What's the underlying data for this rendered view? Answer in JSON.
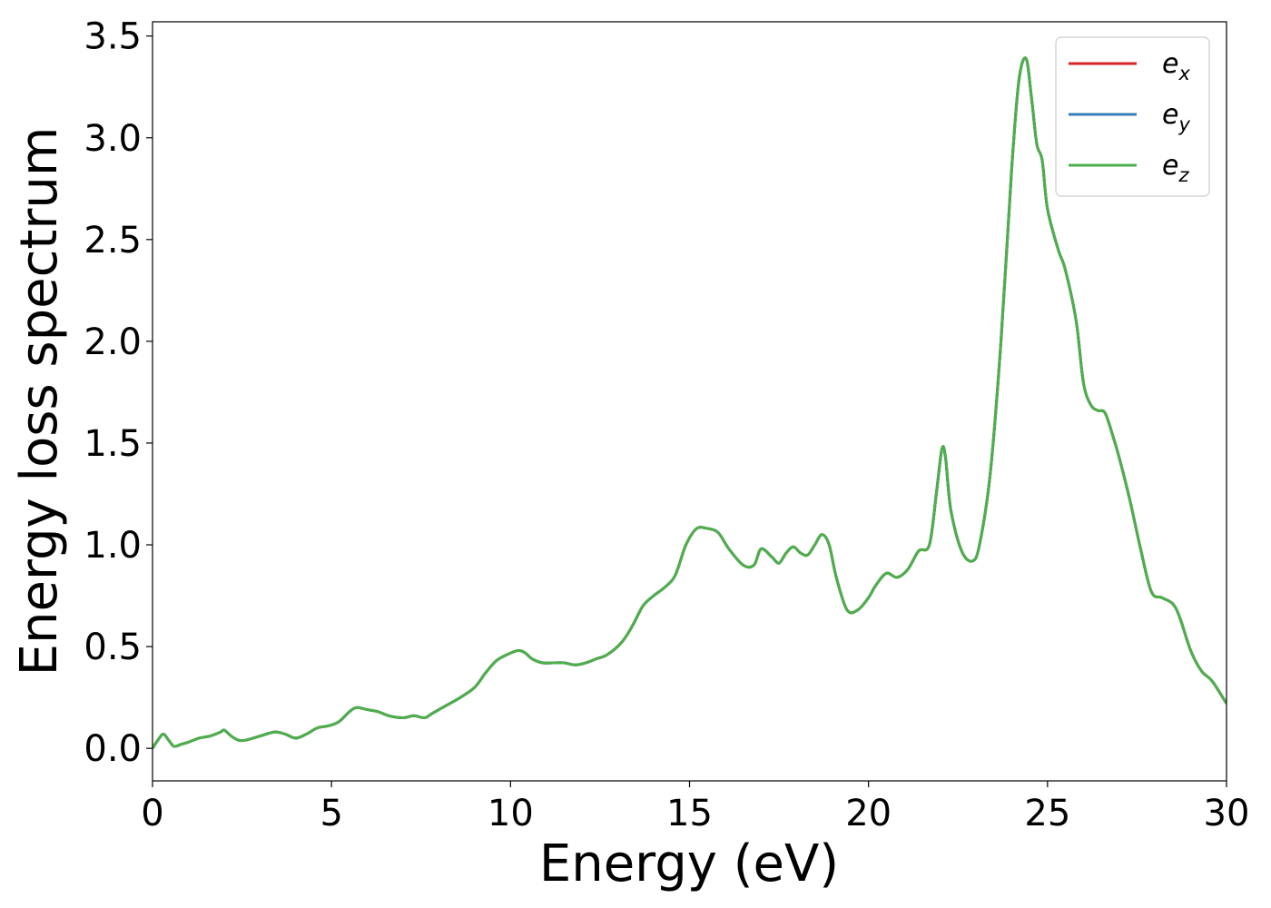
{
  "chart_data": {
    "type": "line",
    "title": "",
    "xlabel": "Energy (eV)",
    "ylabel": "Energy loss spectrum",
    "xlim": [
      0,
      30
    ],
    "ylim": [
      -0.16,
      3.57
    ],
    "xticks": [
      0,
      5,
      10,
      15,
      20,
      25,
      30
    ],
    "xtick_labels": [
      "0",
      "5",
      "10",
      "15",
      "20",
      "25",
      "30"
    ],
    "yticks": [
      0.0,
      0.5,
      1.0,
      1.5,
      2.0,
      2.5,
      3.0,
      3.5
    ],
    "ytick_labels": [
      "0.0",
      "0.5",
      "1.0",
      "1.5",
      "2.0",
      "2.5",
      "3.0",
      "3.5"
    ],
    "grid": false,
    "legend_position": "top-right",
    "series": [
      {
        "legend_base": "e",
        "legend_sub": "x",
        "color": "#d62728",
        "x": [
          0,
          0.15,
          0.3,
          0.45,
          0.6,
          0.8,
          1.0,
          1.3,
          1.6,
          1.9,
          2.0,
          2.2,
          2.4,
          2.6,
          3.0,
          3.4,
          3.7,
          4.0,
          4.3,
          4.6,
          4.9,
          5.2,
          5.5,
          5.7,
          6.0,
          6.3,
          6.6,
          7.0,
          7.3,
          7.6,
          7.8,
          8.2,
          8.6,
          9.0,
          9.3,
          9.6,
          9.9,
          10.2,
          10.4,
          10.6,
          10.9,
          11.2,
          11.5,
          11.8,
          12.1,
          12.4,
          12.7,
          13.1,
          13.4,
          13.7,
          14.0,
          14.3,
          14.6,
          14.9,
          15.2,
          15.5,
          15.8,
          16.1,
          16.5,
          16.8,
          17.0,
          17.3,
          17.5,
          17.7,
          17.9,
          18.1,
          18.3,
          18.5,
          18.7,
          18.9,
          19.1,
          19.4,
          19.7,
          20.0,
          20.2,
          20.5,
          20.8,
          21.1,
          21.4,
          21.7,
          21.9,
          22.05,
          22.15,
          22.3,
          22.6,
          22.9,
          23.1,
          23.4,
          23.7,
          24.0,
          24.2,
          24.4,
          24.55,
          24.7,
          24.85,
          25.0,
          25.3,
          25.5,
          25.8,
          26.0,
          26.2,
          26.4,
          26.6,
          26.8,
          27.0,
          27.3,
          27.6,
          27.9,
          28.2,
          28.5,
          28.7,
          29.0,
          29.3,
          29.6,
          30.0
        ],
        "y": [
          0.0,
          0.04,
          0.07,
          0.04,
          0.01,
          0.02,
          0.03,
          0.05,
          0.06,
          0.08,
          0.09,
          0.06,
          0.04,
          0.04,
          0.06,
          0.08,
          0.07,
          0.05,
          0.07,
          0.1,
          0.11,
          0.13,
          0.18,
          0.2,
          0.19,
          0.18,
          0.16,
          0.15,
          0.16,
          0.15,
          0.17,
          0.21,
          0.25,
          0.3,
          0.37,
          0.43,
          0.46,
          0.48,
          0.47,
          0.44,
          0.42,
          0.42,
          0.42,
          0.41,
          0.42,
          0.44,
          0.46,
          0.52,
          0.6,
          0.7,
          0.75,
          0.79,
          0.85,
          1.0,
          1.08,
          1.08,
          1.06,
          0.98,
          0.9,
          0.9,
          0.98,
          0.94,
          0.91,
          0.96,
          0.99,
          0.96,
          0.95,
          1.0,
          1.05,
          1.0,
          0.84,
          0.68,
          0.68,
          0.74,
          0.8,
          0.86,
          0.84,
          0.88,
          0.97,
          1.0,
          1.26,
          1.47,
          1.43,
          1.17,
          0.97,
          0.92,
          1.0,
          1.35,
          2.0,
          2.85,
          3.28,
          3.39,
          3.2,
          2.97,
          2.89,
          2.65,
          2.45,
          2.35,
          2.1,
          1.8,
          1.69,
          1.66,
          1.65,
          1.55,
          1.43,
          1.22,
          0.98,
          0.77,
          0.74,
          0.71,
          0.64,
          0.48,
          0.38,
          0.33,
          0.22
        ]
      },
      {
        "legend_base": "e",
        "legend_sub": "y",
        "color": "#377eb8",
        "x": [
          0,
          0.15,
          0.3,
          0.45,
          0.6,
          0.8,
          1.0,
          1.3,
          1.6,
          1.9,
          2.0,
          2.2,
          2.4,
          2.6,
          3.0,
          3.4,
          3.7,
          4.0,
          4.3,
          4.6,
          4.9,
          5.2,
          5.5,
          5.7,
          6.0,
          6.3,
          6.6,
          7.0,
          7.3,
          7.6,
          7.8,
          8.2,
          8.6,
          9.0,
          9.3,
          9.6,
          9.9,
          10.2,
          10.4,
          10.6,
          10.9,
          11.2,
          11.5,
          11.8,
          12.1,
          12.4,
          12.7,
          13.1,
          13.4,
          13.7,
          14.0,
          14.3,
          14.6,
          14.9,
          15.2,
          15.5,
          15.8,
          16.1,
          16.5,
          16.8,
          17.0,
          17.3,
          17.5,
          17.7,
          17.9,
          18.1,
          18.3,
          18.5,
          18.7,
          18.9,
          19.1,
          19.4,
          19.7,
          20.0,
          20.2,
          20.5,
          20.8,
          21.1,
          21.4,
          21.7,
          21.9,
          22.05,
          22.15,
          22.3,
          22.6,
          22.9,
          23.1,
          23.4,
          23.7,
          24.0,
          24.2,
          24.4,
          24.55,
          24.7,
          24.85,
          25.0,
          25.3,
          25.5,
          25.8,
          26.0,
          26.2,
          26.4,
          26.6,
          26.8,
          27.0,
          27.3,
          27.6,
          27.9,
          28.2,
          28.5,
          28.7,
          29.0,
          29.3,
          29.6,
          30.0
        ],
        "y": [
          0.0,
          0.04,
          0.07,
          0.04,
          0.01,
          0.02,
          0.03,
          0.05,
          0.06,
          0.08,
          0.09,
          0.06,
          0.04,
          0.04,
          0.06,
          0.08,
          0.07,
          0.05,
          0.07,
          0.1,
          0.11,
          0.13,
          0.18,
          0.2,
          0.19,
          0.18,
          0.16,
          0.15,
          0.16,
          0.15,
          0.17,
          0.21,
          0.25,
          0.3,
          0.37,
          0.43,
          0.46,
          0.48,
          0.47,
          0.44,
          0.42,
          0.42,
          0.42,
          0.41,
          0.42,
          0.44,
          0.46,
          0.52,
          0.6,
          0.7,
          0.75,
          0.79,
          0.85,
          1.0,
          1.08,
          1.08,
          1.06,
          0.98,
          0.9,
          0.9,
          0.98,
          0.94,
          0.91,
          0.96,
          0.99,
          0.96,
          0.95,
          1.0,
          1.05,
          1.0,
          0.84,
          0.68,
          0.68,
          0.74,
          0.8,
          0.86,
          0.84,
          0.88,
          0.97,
          1.0,
          1.26,
          1.47,
          1.43,
          1.17,
          0.97,
          0.92,
          1.0,
          1.35,
          2.0,
          2.85,
          3.28,
          3.39,
          3.2,
          2.97,
          2.89,
          2.65,
          2.45,
          2.35,
          2.1,
          1.8,
          1.69,
          1.66,
          1.65,
          1.55,
          1.43,
          1.22,
          0.98,
          0.77,
          0.74,
          0.71,
          0.64,
          0.48,
          0.38,
          0.33,
          0.22
        ]
      },
      {
        "legend_base": "e",
        "legend_sub": "z",
        "color": "#4daf4a",
        "x": [
          0,
          0.15,
          0.3,
          0.45,
          0.6,
          0.8,
          1.0,
          1.3,
          1.6,
          1.9,
          2.0,
          2.2,
          2.4,
          2.6,
          3.0,
          3.4,
          3.7,
          4.0,
          4.3,
          4.6,
          4.9,
          5.2,
          5.5,
          5.7,
          6.0,
          6.3,
          6.6,
          7.0,
          7.3,
          7.6,
          7.8,
          8.2,
          8.6,
          9.0,
          9.3,
          9.6,
          9.9,
          10.2,
          10.4,
          10.6,
          10.9,
          11.2,
          11.5,
          11.8,
          12.1,
          12.4,
          12.7,
          13.1,
          13.4,
          13.7,
          14.0,
          14.3,
          14.6,
          14.9,
          15.2,
          15.5,
          15.8,
          16.1,
          16.5,
          16.8,
          17.0,
          17.3,
          17.5,
          17.7,
          17.9,
          18.1,
          18.3,
          18.5,
          18.7,
          18.9,
          19.1,
          19.4,
          19.7,
          20.0,
          20.2,
          20.5,
          20.8,
          21.1,
          21.4,
          21.7,
          21.9,
          22.05,
          22.15,
          22.3,
          22.6,
          22.9,
          23.1,
          23.4,
          23.7,
          24.0,
          24.2,
          24.4,
          24.55,
          24.7,
          24.85,
          25.0,
          25.3,
          25.5,
          25.8,
          26.0,
          26.2,
          26.4,
          26.6,
          26.8,
          27.0,
          27.3,
          27.6,
          27.9,
          28.2,
          28.5,
          28.7,
          29.0,
          29.3,
          29.6,
          30.0
        ],
        "y": [
          0.0,
          0.04,
          0.07,
          0.04,
          0.01,
          0.02,
          0.03,
          0.05,
          0.06,
          0.08,
          0.09,
          0.06,
          0.04,
          0.04,
          0.06,
          0.08,
          0.07,
          0.05,
          0.07,
          0.1,
          0.11,
          0.13,
          0.18,
          0.2,
          0.19,
          0.18,
          0.16,
          0.15,
          0.16,
          0.15,
          0.17,
          0.21,
          0.25,
          0.3,
          0.37,
          0.43,
          0.46,
          0.48,
          0.47,
          0.44,
          0.42,
          0.42,
          0.42,
          0.41,
          0.42,
          0.44,
          0.46,
          0.52,
          0.6,
          0.7,
          0.75,
          0.79,
          0.85,
          1.0,
          1.08,
          1.08,
          1.06,
          0.98,
          0.9,
          0.9,
          0.98,
          0.94,
          0.91,
          0.96,
          0.99,
          0.96,
          0.95,
          1.0,
          1.05,
          1.0,
          0.84,
          0.68,
          0.68,
          0.74,
          0.8,
          0.86,
          0.84,
          0.88,
          0.97,
          1.0,
          1.26,
          1.47,
          1.43,
          1.17,
          0.97,
          0.92,
          1.0,
          1.35,
          2.0,
          2.85,
          3.28,
          3.39,
          3.2,
          2.97,
          2.89,
          2.65,
          2.45,
          2.35,
          2.1,
          1.8,
          1.69,
          1.66,
          1.65,
          1.55,
          1.43,
          1.22,
          0.98,
          0.77,
          0.74,
          0.71,
          0.64,
          0.48,
          0.38,
          0.33,
          0.22
        ]
      }
    ]
  }
}
